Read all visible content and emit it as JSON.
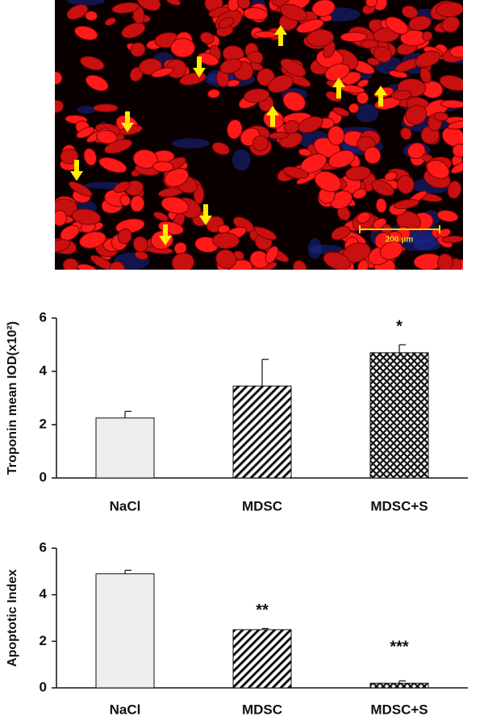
{
  "image": {
    "scale_bar_label": "200 μm"
  },
  "chart_data": [
    {
      "type": "bar",
      "y_label": "Troponin mean IOD(x10²)",
      "categories": [
        "NaCl",
        "MDSC",
        "MDSC+S"
      ],
      "values": [
        2.25,
        3.45,
        4.7
      ],
      "errors": [
        0.25,
        1.0,
        0.3
      ],
      "fills": [
        "solid",
        "diagonal",
        "crosshatch"
      ],
      "ylim": [
        0,
        6
      ],
      "yticks": [
        0,
        2,
        4,
        6
      ],
      "annotations": [
        {
          "category": "MDSC+S",
          "text": "*"
        }
      ]
    },
    {
      "type": "bar",
      "y_label": "Apoptotic Index",
      "categories": [
        "NaCl",
        "MDSC",
        "MDSC+S"
      ],
      "values": [
        4.9,
        2.5,
        0.2
      ],
      "errors": [
        0.15,
        0.05,
        0.1
      ],
      "fills": [
        "solid",
        "diagonal",
        "crosshatch"
      ],
      "ylim": [
        0,
        6
      ],
      "yticks": [
        0,
        2,
        4,
        6
      ],
      "annotations": [
        {
          "category": "MDSC",
          "text": "**"
        },
        {
          "category": "MDSC+S",
          "text": "***"
        }
      ]
    }
  ]
}
